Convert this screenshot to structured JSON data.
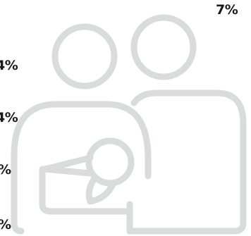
{
  "labels": [
    {
      "text": "7%"
    },
    {
      "text": "4%"
    },
    {
      "text": "4%"
    },
    {
      "text": "%"
    },
    {
      "text": "%"
    }
  ],
  "colors": {
    "text": "#1a1a1a",
    "illustration_stroke": "#d9dbdd"
  },
  "illustration": {
    "icon": "parents-with-baby-icon"
  }
}
